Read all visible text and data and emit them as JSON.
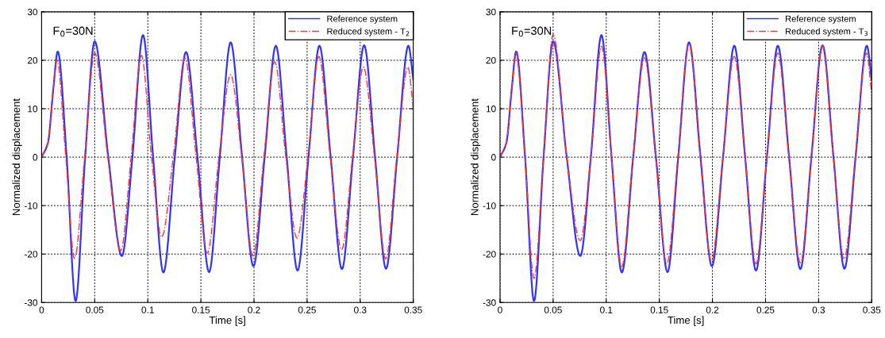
{
  "chart_data": [
    {
      "type": "line",
      "xlabel": "Time [s]",
      "ylabel": "Normalized displacement",
      "annotations": [
        "F$_{0}$=30N"
      ],
      "xlim": [
        0,
        0.35
      ],
      "ylim": [
        -30,
        30
      ],
      "xticks": [
        0,
        0.05,
        0.1,
        0.15,
        0.2,
        0.25,
        0.3,
        0.35
      ],
      "yticks": [
        -30,
        -20,
        -10,
        0,
        10,
        20,
        30
      ],
      "grid": true,
      "legend": "top right",
      "series": [
        {
          "name": "Reference system",
          "color": "#3333ff",
          "line_style": "solid",
          "x": [
            0,
            0.006,
            0.011,
            0.0152,
            0.0236,
            0.032,
            0.041,
            0.05,
            0.0628,
            0.0756,
            0.0855,
            0.0955,
            0.105,
            0.1147,
            0.1254,
            0.136,
            0.1468,
            0.1577,
            0.1678,
            0.178,
            0.1888,
            0.1995,
            0.21,
            0.2206,
            0.2308,
            0.241,
            0.2513,
            0.2616,
            0.2722,
            0.2828,
            0.2932,
            0.3037,
            0.314,
            0.3243,
            0.3348,
            0.3454,
            0.35
          ],
          "values": [
            0,
            3,
            14,
            21.8,
            0,
            -29.7,
            0,
            23.9,
            0,
            -20.4,
            0,
            25.2,
            0,
            -23.8,
            0,
            21.7,
            0,
            -23.7,
            0,
            23.7,
            0,
            -22.5,
            0,
            23.0,
            0,
            -23.4,
            0,
            23.0,
            0,
            -23.1,
            0,
            23.1,
            0,
            -23.0,
            0,
            23.0,
            16
          ]
        },
        {
          "name": "Reduced system - T$_{2}$",
          "color": "#ff3333",
          "line_style": "dashdot",
          "x": [
            0,
            0.006,
            0.0105,
            0.0145,
            0.0228,
            0.031,
            0.0405,
            0.05,
            0.0623,
            0.0745,
            0.0843,
            0.094,
            0.1035,
            0.113,
            0.124,
            0.135,
            0.1455,
            0.156,
            0.167,
            0.178,
            0.1885,
            0.199,
            0.2093,
            0.2195,
            0.23,
            0.2405,
            0.2508,
            0.261,
            0.2718,
            0.2825,
            0.2928,
            0.303,
            0.3135,
            0.324,
            0.3345,
            0.345,
            0.35
          ],
          "values": [
            0,
            3,
            13,
            20.0,
            0,
            -20.9,
            0,
            21.5,
            0,
            -19.3,
            0,
            21.0,
            0,
            -16.5,
            0,
            20.5,
            0,
            -19.8,
            0,
            17.0,
            0,
            -20.4,
            0,
            19.7,
            0,
            -16.7,
            0,
            20.8,
            0,
            -19.1,
            0,
            18.6,
            0,
            -21.0,
            0,
            18.6,
            10
          ]
        }
      ]
    },
    {
      "type": "line",
      "xlabel": "Time [s]",
      "ylabel": "Normalized displacement",
      "annotations": [
        "F$_{0}$=30N"
      ],
      "xlim": [
        0,
        0.35
      ],
      "ylim": [
        -30,
        30
      ],
      "xticks": [
        0,
        0.05,
        0.1,
        0.15,
        0.2,
        0.25,
        0.3,
        0.35
      ],
      "yticks": [
        -30,
        -20,
        -10,
        0,
        10,
        20,
        30
      ],
      "grid": true,
      "legend": "top right",
      "series": [
        {
          "name": "Reference system",
          "color": "#3333ff",
          "line_style": "solid",
          "x": [
            0,
            0.006,
            0.011,
            0.0152,
            0.0236,
            0.032,
            0.041,
            0.05,
            0.0628,
            0.0756,
            0.0855,
            0.0955,
            0.105,
            0.1147,
            0.1254,
            0.136,
            0.1468,
            0.1577,
            0.1678,
            0.178,
            0.1888,
            0.1995,
            0.21,
            0.2206,
            0.2308,
            0.241,
            0.2513,
            0.2616,
            0.2722,
            0.2828,
            0.2932,
            0.3037,
            0.314,
            0.3243,
            0.3348,
            0.3454,
            0.35
          ],
          "values": [
            0,
            3,
            14,
            21.8,
            0,
            -29.7,
            0,
            23.9,
            0,
            -20.4,
            0,
            25.2,
            0,
            -23.8,
            0,
            21.7,
            0,
            -23.7,
            0,
            23.7,
            0,
            -22.5,
            0,
            23.0,
            0,
            -23.4,
            0,
            23.0,
            0,
            -23.1,
            0,
            23.1,
            0,
            -23.0,
            0,
            23.0,
            16
          ]
        },
        {
          "name": "Reduced system - T$_{3}$",
          "color": "#ff3333",
          "line_style": "dashdot",
          "x": [
            0,
            0.006,
            0.011,
            0.015,
            0.0235,
            0.032,
            0.041,
            0.05,
            0.0628,
            0.0755,
            0.0855,
            0.0955,
            0.105,
            0.1145,
            0.1252,
            0.136,
            0.1465,
            0.157,
            0.1675,
            0.178,
            0.1885,
            0.199,
            0.2098,
            0.2205,
            0.2308,
            0.241,
            0.2513,
            0.2615,
            0.272,
            0.2828,
            0.2932,
            0.3035,
            0.3138,
            0.324,
            0.3345,
            0.345,
            0.35
          ],
          "values": [
            0,
            3,
            14,
            21.5,
            0,
            -25.0,
            0,
            25.3,
            0,
            -17.2,
            0,
            22.9,
            0,
            -22.6,
            0,
            20.5,
            0,
            -22.0,
            0,
            23.4,
            0,
            -21.5,
            0,
            20.8,
            0,
            -22.0,
            0,
            21.5,
            0,
            -21.8,
            0,
            23.0,
            0,
            -21.0,
            0,
            21.5,
            13
          ]
        }
      ]
    }
  ]
}
